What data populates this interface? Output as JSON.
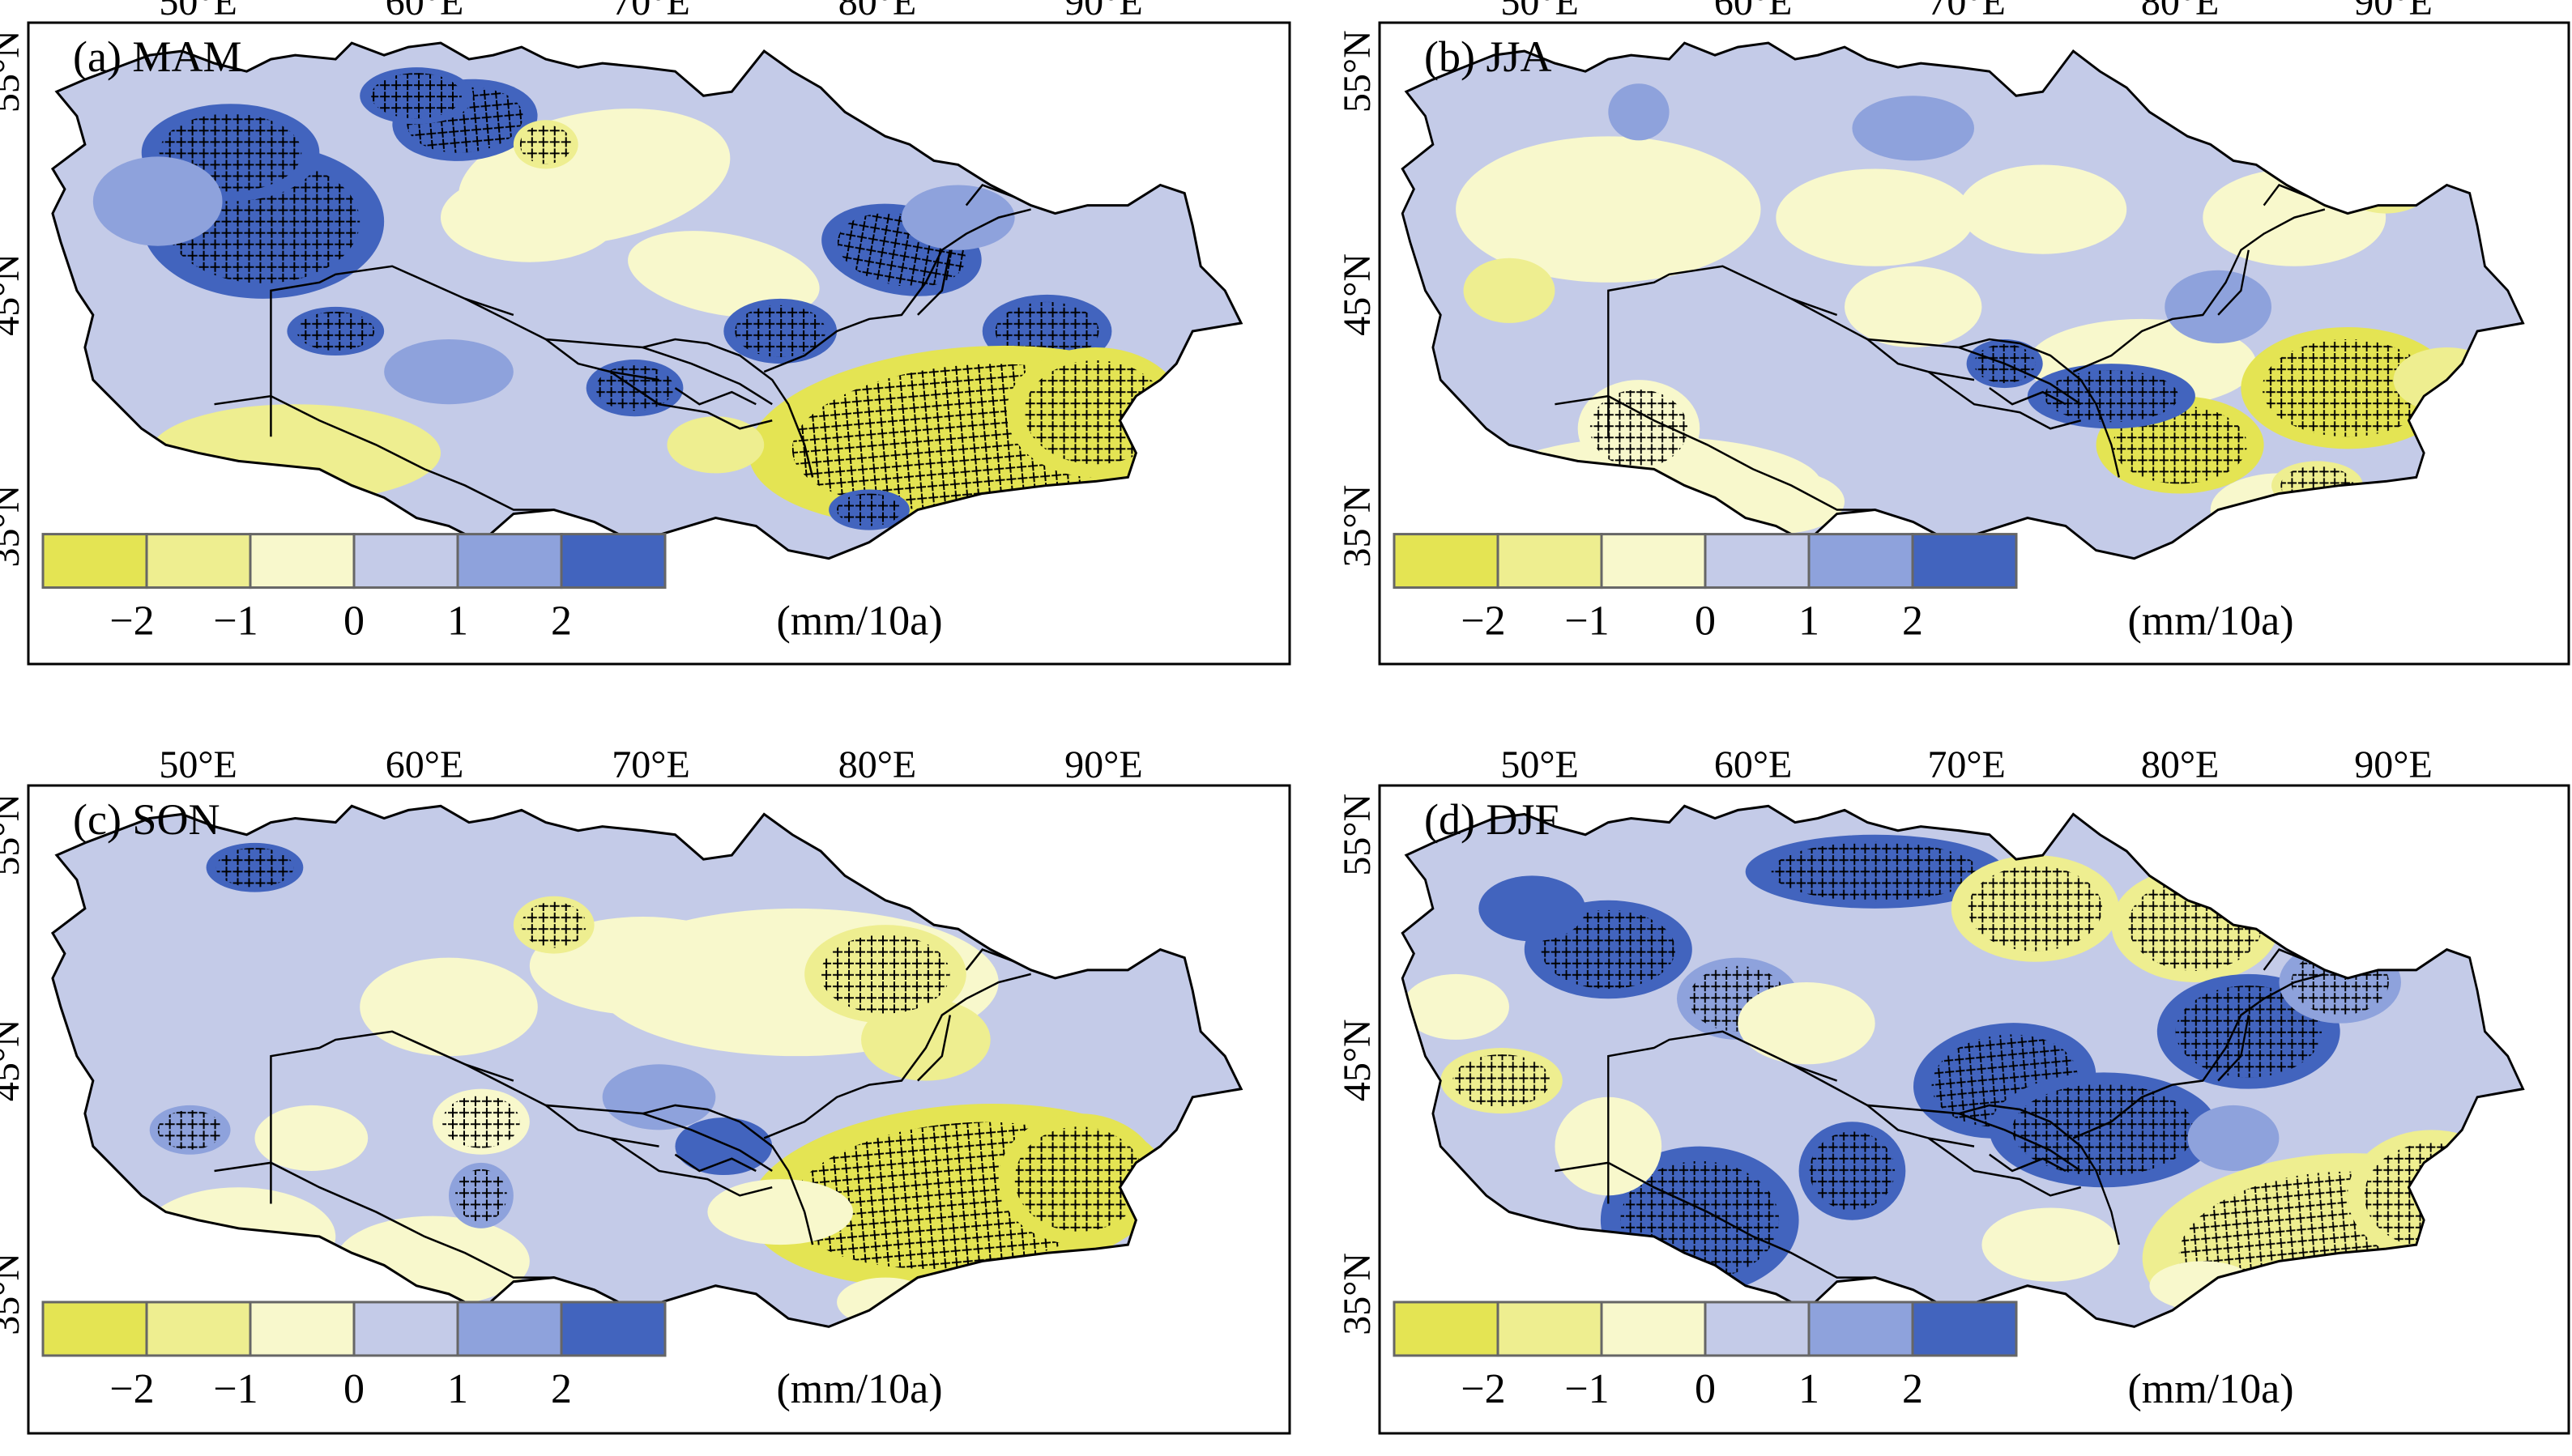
{
  "figure": {
    "lon_ticks": [
      "50°E",
      "60°E",
      "70°E",
      "80°E",
      "90°E"
    ],
    "lat_ticks": [
      "55°N",
      "45°N",
      "35°N"
    ],
    "legend": {
      "ticks": [
        "−2",
        "−1",
        "0",
        "1",
        "2"
      ],
      "unit": "(mm/10a)",
      "colors": [
        "#e4e453",
        "#eeee90",
        "#f8f8cc",
        "#c4cbe8",
        "#8ea2dc",
        "#4264be"
      ]
    },
    "hatch_meaning": "significant trend (cross symbols)",
    "border_color": "#000000"
  },
  "panels": [
    {
      "id": "a",
      "label": "(a) MAM",
      "season": "MAM"
    },
    {
      "id": "b",
      "label": "(b) JJA",
      "season": "JJA"
    },
    {
      "id": "c",
      "label": "(c) SON",
      "season": "SON"
    },
    {
      "id": "d",
      "label": "(d) DJF",
      "season": "DJF"
    }
  ]
}
